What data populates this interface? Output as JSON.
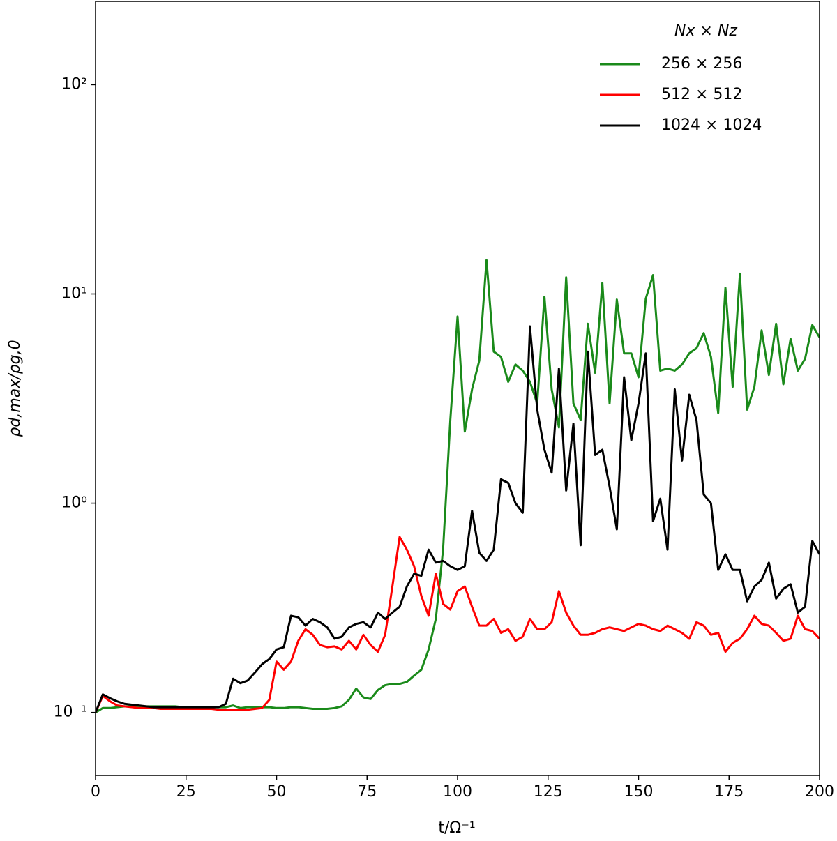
{
  "chart_data": {
    "type": "line",
    "xlabel": "t/Ω⁻¹",
    "ylabel": "ρd,max/ρg,0",
    "legend_title": "Nx × Nz",
    "legend": "upper right",
    "xlim": [
      0,
      200
    ],
    "xticks": [
      0,
      25,
      50,
      75,
      100,
      125,
      150,
      175,
      200
    ],
    "ylim": [
      0.05,
      250
    ],
    "yscale": "log",
    "yticks": [
      {
        "value": 0.1,
        "label": "10⁻¹"
      },
      {
        "value": 1,
        "label": "10⁰"
      },
      {
        "value": 10,
        "label": "10¹"
      },
      {
        "value": 100,
        "label": "10²"
      }
    ],
    "x": [
      0,
      2,
      4,
      6,
      8,
      10,
      12,
      14,
      16,
      18,
      20,
      22,
      24,
      26,
      28,
      30,
      32,
      34,
      36,
      38,
      40,
      42,
      44,
      46,
      48,
      50,
      52,
      54,
      56,
      58,
      60,
      62,
      64,
      66,
      68,
      70,
      72,
      74,
      76,
      78,
      80,
      82,
      84,
      86,
      88,
      90,
      92,
      94,
      96,
      98,
      100,
      102,
      104,
      106,
      108,
      110,
      112,
      114,
      116,
      118,
      120,
      122,
      124,
      126,
      128,
      130,
      132,
      134,
      136,
      138,
      140,
      142,
      144,
      146,
      148,
      150,
      152,
      154,
      156,
      158,
      160,
      162,
      164,
      166,
      168,
      170,
      172,
      174,
      176,
      178,
      180,
      182,
      184,
      186,
      188,
      190,
      192,
      194,
      196,
      198,
      200
    ],
    "series": [
      {
        "name": "256 × 256",
        "color": "#1a8a1a",
        "values": [
          0.1,
          0.105,
          0.105,
          0.106,
          0.107,
          0.107,
          0.107,
          0.107,
          0.107,
          0.107,
          0.107,
          0.107,
          0.106,
          0.106,
          0.106,
          0.106,
          0.106,
          0.106,
          0.106,
          0.108,
          0.105,
          0.106,
          0.106,
          0.106,
          0.106,
          0.105,
          0.105,
          0.106,
          0.106,
          0.105,
          0.104,
          0.104,
          0.104,
          0.105,
          0.107,
          0.115,
          0.13,
          0.118,
          0.116,
          0.128,
          0.135,
          0.137,
          0.137,
          0.14,
          0.15,
          0.16,
          0.2,
          0.28,
          0.6,
          2.5,
          7.8,
          2.2,
          3.5,
          4.8,
          14.5,
          5.3,
          5.0,
          3.8,
          4.6,
          4.3,
          3.8,
          3.0,
          9.7,
          3.5,
          2.3,
          12,
          3.0,
          2.5,
          7.2,
          4.2,
          11.3,
          3.0,
          9.4,
          5.2,
          5.2,
          4.0,
          9.5,
          12.3,
          4.3,
          4.4,
          4.3,
          4.6,
          5.2,
          5.5,
          6.5,
          5.0,
          2.7,
          10.7,
          3.6,
          12.5,
          2.8,
          3.6,
          6.7,
          4.1,
          7.2,
          3.7,
          6.1,
          4.3,
          4.9,
          7.1,
          6.2
        ]
      },
      {
        "name": "512 × 512",
        "color": "#ff0000",
        "values": [
          0.1,
          0.12,
          0.113,
          0.108,
          0.107,
          0.106,
          0.105,
          0.105,
          0.105,
          0.104,
          0.104,
          0.104,
          0.104,
          0.104,
          0.104,
          0.104,
          0.104,
          0.103,
          0.103,
          0.103,
          0.103,
          0.103,
          0.104,
          0.105,
          0.115,
          0.175,
          0.16,
          0.175,
          0.22,
          0.25,
          0.235,
          0.21,
          0.205,
          0.207,
          0.2,
          0.22,
          0.2,
          0.235,
          0.21,
          0.195,
          0.235,
          0.4,
          0.69,
          0.6,
          0.5,
          0.36,
          0.29,
          0.46,
          0.33,
          0.31,
          0.38,
          0.4,
          0.32,
          0.26,
          0.26,
          0.28,
          0.24,
          0.25,
          0.22,
          0.23,
          0.28,
          0.25,
          0.25,
          0.27,
          0.38,
          0.3,
          0.26,
          0.235,
          0.235,
          0.24,
          0.25,
          0.255,
          0.25,
          0.245,
          0.255,
          0.265,
          0.26,
          0.25,
          0.245,
          0.26,
          0.25,
          0.24,
          0.225,
          0.27,
          0.26,
          0.235,
          0.24,
          0.195,
          0.215,
          0.225,
          0.25,
          0.29,
          0.265,
          0.26,
          0.24,
          0.22,
          0.225,
          0.29,
          0.25,
          0.245,
          0.225
        ]
      },
      {
        "name": "1024 × 1024",
        "color": "#000000",
        "values": [
          0.1,
          0.122,
          0.117,
          0.113,
          0.11,
          0.109,
          0.108,
          0.107,
          0.106,
          0.106,
          0.106,
          0.106,
          0.106,
          0.106,
          0.106,
          0.106,
          0.106,
          0.106,
          0.11,
          0.145,
          0.138,
          0.142,
          0.155,
          0.17,
          0.18,
          0.2,
          0.205,
          0.29,
          0.285,
          0.26,
          0.28,
          0.27,
          0.255,
          0.225,
          0.23,
          0.255,
          0.265,
          0.27,
          0.255,
          0.3,
          0.28,
          0.3,
          0.32,
          0.4,
          0.46,
          0.45,
          0.6,
          0.52,
          0.53,
          0.5,
          0.48,
          0.5,
          0.92,
          0.58,
          0.53,
          0.6,
          1.3,
          1.25,
          1.0,
          0.9,
          7.0,
          2.8,
          1.8,
          1.4,
          4.4,
          1.15,
          2.4,
          0.63,
          5.3,
          1.7,
          1.8,
          1.2,
          0.75,
          4.0,
          2.0,
          3.0,
          5.2,
          0.82,
          1.05,
          0.6,
          3.5,
          1.6,
          3.3,
          2.5,
          1.1,
          1.0,
          0.48,
          0.57,
          0.48,
          0.48,
          0.34,
          0.4,
          0.43,
          0.52,
          0.35,
          0.39,
          0.41,
          0.3,
          0.32,
          0.66,
          0.57
        ]
      }
    ]
  }
}
